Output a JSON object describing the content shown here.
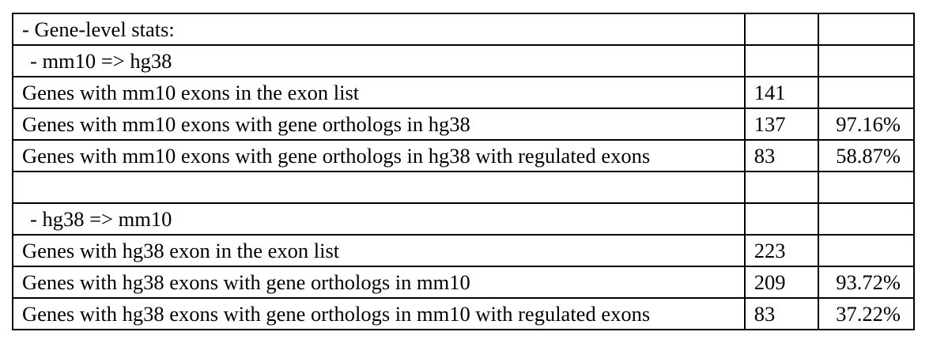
{
  "table": {
    "rows": [
      {
        "label": "- Gene-level stats:",
        "count": "",
        "percent": "",
        "indent": 0
      },
      {
        "label": "- mm10 => hg38",
        "count": "",
        "percent": "",
        "indent": 1
      },
      {
        "label": "Genes with mm10 exons in the exon list",
        "count": "141",
        "percent": "",
        "indent": 0
      },
      {
        "label": "Genes with mm10 exons with gene orthologs in hg38",
        "count": "137",
        "percent": "97.16%",
        "indent": 0
      },
      {
        "label": "Genes with mm10 exons with gene orthologs in hg38 with regulated exons",
        "count": "83",
        "percent": "58.87%",
        "indent": 0
      },
      {
        "label": "",
        "count": "",
        "percent": "",
        "indent": 0
      },
      {
        "label": "- hg38 => mm10",
        "count": "",
        "percent": "",
        "indent": 1
      },
      {
        "label": "Genes with hg38 exon in the exon list",
        "count": "223",
        "percent": "",
        "indent": 0
      },
      {
        "label": "Genes with hg38 exons with gene orthologs in mm10",
        "count": "209",
        "percent": "93.72%",
        "indent": 0
      },
      {
        "label": "Genes with hg38 exons with gene orthologs in mm10 with regulated exons",
        "count": "83",
        "percent": "37.22%",
        "indent": 0
      }
    ]
  }
}
